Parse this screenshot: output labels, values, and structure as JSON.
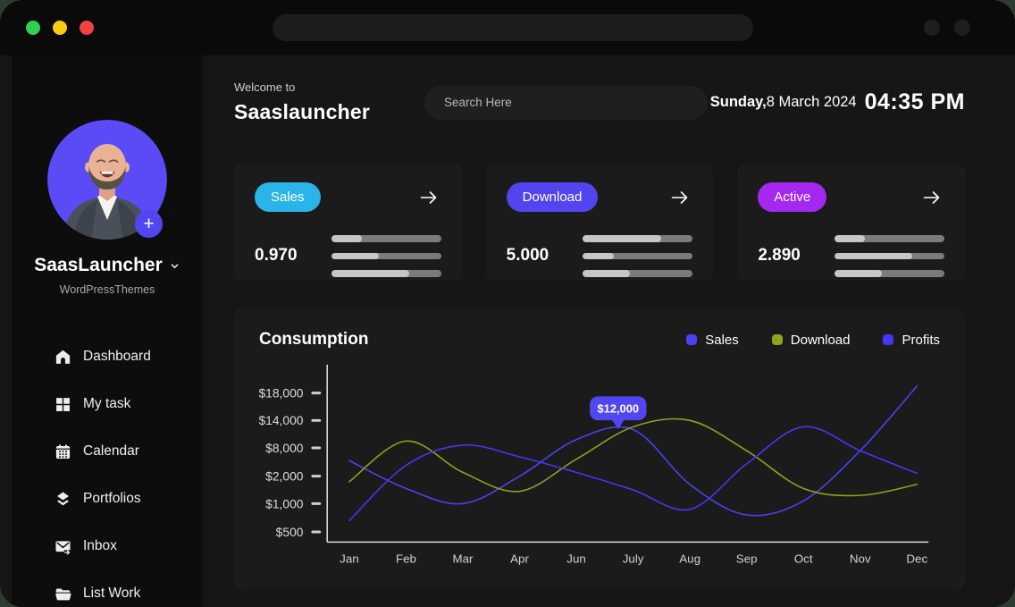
{
  "window": {
    "traffic_lights": {
      "green": "#31d14e",
      "yellow": "#fcca10",
      "red": "#ee4540"
    },
    "url_bar_value": ""
  },
  "sidebar": {
    "profile": {
      "name": "SaasLauncher",
      "subtitle": "WordPressThemes",
      "avatar_accent": "#5a4bf7",
      "plus_label": "+"
    },
    "items": [
      {
        "icon": "home-icon",
        "label": "Dashboard"
      },
      {
        "icon": "grid-icon",
        "label": "My task"
      },
      {
        "icon": "calendar-icon",
        "label": "Calendar"
      },
      {
        "icon": "layers-icon",
        "label": "Portfolios"
      },
      {
        "icon": "inbox-icon",
        "label": "Inbox"
      },
      {
        "icon": "folder-icon",
        "label": "List Work"
      }
    ]
  },
  "header": {
    "welcome": "Welcome to",
    "app_name": "Saaslauncher",
    "search_placeholder": "Search Here",
    "date_day": "Sunday,",
    "date_rest": "8 March 2024",
    "time": "04:35 PM"
  },
  "cards": [
    {
      "badge": "Sales",
      "badge_color": "#2ab4e8",
      "value": "0.970",
      "bars": [
        28,
        43,
        71
      ]
    },
    {
      "badge": "Download",
      "badge_color": "#5245ef",
      "value": "5.000",
      "bars": [
        71,
        28,
        43
      ]
    },
    {
      "badge": "Active",
      "badge_color": "#a428f0",
      "value": "2.890",
      "bars": [
        28,
        71,
        43
      ]
    }
  ],
  "colors": {
    "bar_fill": "#c6c6c6",
    "bar_track": "#7b7b7b",
    "axis": "#d9d9d9",
    "tooltip_bg": "#5246f0"
  },
  "chart_data": {
    "type": "line",
    "title": "Consumption",
    "x": [
      "Jan",
      "Feb",
      "Mar",
      "Apr",
      "Jun",
      "July",
      "Aug",
      "Sep",
      "Oct",
      "Nov",
      "Dec"
    ],
    "ytick_labels": [
      "$18,000",
      "$14,000",
      "$8,000",
      "$2,000",
      "$1,000",
      "$500"
    ],
    "ytick_values": [
      18000,
      14000,
      8000,
      2000,
      1000,
      500
    ],
    "grid": false,
    "legend_position": "top-right",
    "series": [
      {
        "name": "Sales",
        "color": "#4a43ee",
        "values": [
          5300,
          1550,
          1000,
          2000,
          9800,
          12000,
          1700,
          800,
          1100,
          7400,
          19000
        ]
      },
      {
        "name": "Download",
        "color": "#8fa31c",
        "values": [
          1800,
          9500,
          2800,
          1450,
          5600,
          12600,
          14000,
          7400,
          1550,
          1300,
          1700
        ]
      },
      {
        "name": "Profits",
        "color": "#4636f8",
        "values": [
          700,
          4300,
          8600,
          6100,
          2800,
          1500,
          900,
          4600,
          12600,
          7400,
          2600
        ]
      }
    ],
    "tooltip": {
      "label": "$12,000"
    }
  }
}
